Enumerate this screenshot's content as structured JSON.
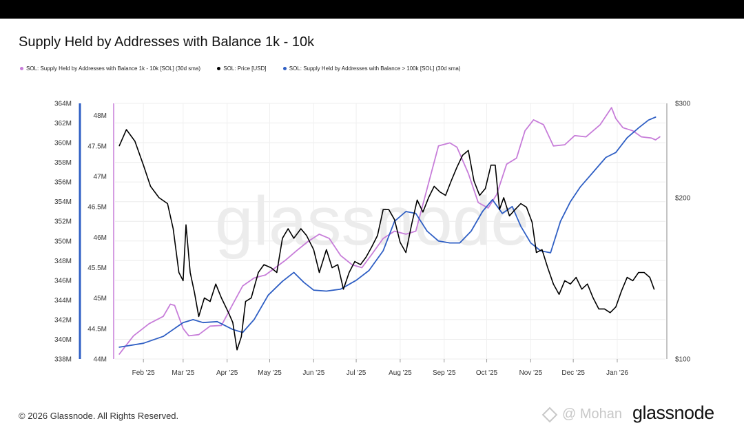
{
  "title": "Supply Held by Addresses with Balance 1k - 10k",
  "legend": [
    {
      "label": "SOL: Supply Held by Addresses with Balance 1k - 10k [SOL] (30d sma)",
      "color": "#c77dd9"
    },
    {
      "label": "SOL: Price [USD]",
      "color": "#000000"
    },
    {
      "label": "SOL: Supply Held by Addresses with Balance > 100k [SOL] (30d sma)",
      "color": "#2f5fc4"
    }
  ],
  "footer": {
    "copyright": "© 2026 Glassnode. All Rights Reserved.",
    "logo": "glassnode",
    "author": "@ Mohan",
    "author_icon": "diamond-icon"
  },
  "watermark": "glassnode",
  "chart_data": {
    "type": "line",
    "x_labels": [
      "Feb '25",
      "Mar '25",
      "Apr '25",
      "May '25",
      "Jun '25",
      "Jul '25",
      "Aug '25",
      "Sep '25",
      "Oct '25",
      "Nov '25",
      "Dec '25",
      "Jan '26"
    ],
    "axes": {
      "left_outer": {
        "ticks": [
          "364M",
          "362M",
          "360M",
          "358M",
          "356M",
          "354M",
          "352M",
          "350M",
          "348M",
          "346M",
          "344M",
          "342M",
          "340M",
          "338M"
        ],
        "range": [
          338,
          364
        ],
        "unit": "M",
        "color": "#2f5fc4"
      },
      "left_inner": {
        "ticks": [
          "48M",
          "47.5M",
          "47M",
          "46.5M",
          "46M",
          "45.5M",
          "45M",
          "44.5M",
          "44M"
        ],
        "range": [
          44,
          48.2
        ],
        "unit": "M",
        "color": "#c77dd9"
      },
      "right": {
        "ticks": [
          "$300",
          "$200",
          "$100"
        ],
        "range": [
          100,
          300
        ],
        "scale": "log"
      }
    },
    "series": [
      {
        "name": "SOL: Supply Held by Addresses with Balance 1k - 10k [SOL] (30d sma)",
        "color": "#c77dd9",
        "axis": "left_inner",
        "unit": "M",
        "points": [
          [
            "2025-01-15",
            44.08
          ],
          [
            "2025-01-25",
            44.38
          ],
          [
            "2025-02-05",
            44.58
          ],
          [
            "2025-02-15",
            44.7
          ],
          [
            "2025-02-20",
            44.9
          ],
          [
            "2025-02-23",
            44.88
          ],
          [
            "2025-03-01",
            44.5
          ],
          [
            "2025-03-05",
            44.38
          ],
          [
            "2025-03-12",
            44.4
          ],
          [
            "2025-03-20",
            44.54
          ],
          [
            "2025-03-28",
            44.55
          ],
          [
            "2025-04-05",
            44.9
          ],
          [
            "2025-04-12",
            45.2
          ],
          [
            "2025-04-20",
            45.33
          ],
          [
            "2025-04-28",
            45.38
          ],
          [
            "2025-05-05",
            45.5
          ],
          [
            "2025-05-12",
            45.62
          ],
          [
            "2025-05-20",
            45.78
          ],
          [
            "2025-05-28",
            45.93
          ],
          [
            "2025-06-05",
            46.05
          ],
          [
            "2025-06-12",
            45.98
          ],
          [
            "2025-06-20",
            45.7
          ],
          [
            "2025-06-28",
            45.55
          ],
          [
            "2025-07-05",
            45.5
          ],
          [
            "2025-07-12",
            45.72
          ],
          [
            "2025-07-20",
            45.98
          ],
          [
            "2025-07-28",
            46.1
          ],
          [
            "2025-08-05",
            46.05
          ],
          [
            "2025-08-12",
            46.1
          ],
          [
            "2025-08-20",
            46.8
          ],
          [
            "2025-08-28",
            47.5
          ],
          [
            "2025-09-05",
            47.55
          ],
          [
            "2025-09-10",
            47.48
          ],
          [
            "2025-09-18",
            47.05
          ],
          [
            "2025-09-25",
            46.57
          ],
          [
            "2025-10-02",
            46.48
          ],
          [
            "2025-10-08",
            46.7
          ],
          [
            "2025-10-15",
            47.2
          ],
          [
            "2025-10-22",
            47.3
          ],
          [
            "2025-10-28",
            47.75
          ],
          [
            "2025-11-03",
            47.93
          ],
          [
            "2025-11-10",
            47.85
          ],
          [
            "2025-11-17",
            47.5
          ],
          [
            "2025-11-25",
            47.52
          ],
          [
            "2025-12-02",
            47.67
          ],
          [
            "2025-12-10",
            47.65
          ],
          [
            "2025-12-20",
            47.85
          ],
          [
            "2025-12-28",
            48.13
          ],
          [
            "2025-12-31",
            47.95
          ],
          [
            "2026-01-05",
            47.8
          ],
          [
            "2026-01-12",
            47.75
          ],
          [
            "2026-01-18",
            47.65
          ],
          [
            "2026-01-25",
            47.63
          ],
          [
            "2026-01-28",
            47.6
          ],
          [
            "2026-01-31",
            47.65
          ]
        ]
      },
      {
        "name": "SOL: Price [USD]",
        "color": "#000000",
        "axis": "right",
        "unit": "USD",
        "points": [
          [
            "2025-01-15",
            250
          ],
          [
            "2025-01-20",
            268
          ],
          [
            "2025-01-26",
            255
          ],
          [
            "2025-02-01",
            230
          ],
          [
            "2025-02-06",
            210
          ],
          [
            "2025-02-12",
            200
          ],
          [
            "2025-02-18",
            195
          ],
          [
            "2025-02-22",
            175
          ],
          [
            "2025-02-26",
            145
          ],
          [
            "2025-03-01",
            140
          ],
          [
            "2025-03-03",
            178
          ],
          [
            "2025-03-06",
            145
          ],
          [
            "2025-03-09",
            133
          ],
          [
            "2025-03-12",
            120
          ],
          [
            "2025-03-16",
            130
          ],
          [
            "2025-03-20",
            128
          ],
          [
            "2025-03-24",
            138
          ],
          [
            "2025-03-28",
            130
          ],
          [
            "2025-04-02",
            122
          ],
          [
            "2025-04-05",
            117
          ],
          [
            "2025-04-08",
            104
          ],
          [
            "2025-04-11",
            110
          ],
          [
            "2025-04-14",
            128
          ],
          [
            "2025-04-18",
            130
          ],
          [
            "2025-04-23",
            145
          ],
          [
            "2025-04-27",
            150
          ],
          [
            "2025-05-02",
            148
          ],
          [
            "2025-05-06",
            145
          ],
          [
            "2025-05-10",
            168
          ],
          [
            "2025-05-14",
            175
          ],
          [
            "2025-05-18",
            168
          ],
          [
            "2025-05-23",
            175
          ],
          [
            "2025-05-27",
            170
          ],
          [
            "2025-06-01",
            160
          ],
          [
            "2025-06-05",
            145
          ],
          [
            "2025-06-10",
            160
          ],
          [
            "2025-06-14",
            148
          ],
          [
            "2025-06-18",
            150
          ],
          [
            "2025-06-22",
            135
          ],
          [
            "2025-06-26",
            145
          ],
          [
            "2025-06-30",
            152
          ],
          [
            "2025-07-04",
            150
          ],
          [
            "2025-07-08",
            155
          ],
          [
            "2025-07-12",
            162
          ],
          [
            "2025-07-16",
            170
          ],
          [
            "2025-07-20",
            190
          ],
          [
            "2025-07-24",
            190
          ],
          [
            "2025-07-28",
            182
          ],
          [
            "2025-08-01",
            165
          ],
          [
            "2025-08-05",
            158
          ],
          [
            "2025-08-09",
            178
          ],
          [
            "2025-08-13",
            198
          ],
          [
            "2025-08-17",
            188
          ],
          [
            "2025-08-21",
            200
          ],
          [
            "2025-08-25",
            210
          ],
          [
            "2025-08-29",
            205
          ],
          [
            "2025-09-02",
            202
          ],
          [
            "2025-09-06",
            215
          ],
          [
            "2025-09-10",
            228
          ],
          [
            "2025-09-14",
            240
          ],
          [
            "2025-09-18",
            245
          ],
          [
            "2025-09-22",
            215
          ],
          [
            "2025-09-26",
            202
          ],
          [
            "2025-09-30",
            208
          ],
          [
            "2025-10-04",
            230
          ],
          [
            "2025-10-07",
            230
          ],
          [
            "2025-10-10",
            190
          ],
          [
            "2025-10-13",
            200
          ],
          [
            "2025-10-17",
            185
          ],
          [
            "2025-10-21",
            190
          ],
          [
            "2025-10-25",
            195
          ],
          [
            "2025-10-29",
            192
          ],
          [
            "2025-11-02",
            180
          ],
          [
            "2025-11-05",
            158
          ],
          [
            "2025-11-09",
            160
          ],
          [
            "2025-11-13",
            148
          ],
          [
            "2025-11-17",
            138
          ],
          [
            "2025-11-21",
            132
          ],
          [
            "2025-11-25",
            140
          ],
          [
            "2025-11-29",
            138
          ],
          [
            "2025-12-03",
            142
          ],
          [
            "2025-12-07",
            135
          ],
          [
            "2025-12-11",
            138
          ],
          [
            "2025-12-15",
            130
          ],
          [
            "2025-12-19",
            124
          ],
          [
            "2025-12-23",
            124
          ],
          [
            "2025-12-27",
            122
          ],
          [
            "2025-12-31",
            125
          ],
          [
            "2026-01-04",
            134
          ],
          [
            "2026-01-08",
            142
          ],
          [
            "2026-01-12",
            140
          ],
          [
            "2026-01-16",
            145
          ],
          [
            "2026-01-20",
            145
          ],
          [
            "2026-01-24",
            142
          ],
          [
            "2026-01-27",
            135
          ]
        ]
      },
      {
        "name": "SOL: Supply Held by Addresses with Balance > 100k [SOL] (30d sma)",
        "color": "#2f5fc4",
        "axis": "left_outer",
        "unit": "M",
        "points": [
          [
            "2025-01-15",
            339.2
          ],
          [
            "2025-02-01",
            339.6
          ],
          [
            "2025-02-15",
            340.3
          ],
          [
            "2025-03-01",
            341.7
          ],
          [
            "2025-03-08",
            342
          ],
          [
            "2025-03-15",
            341.7
          ],
          [
            "2025-03-25",
            341.8
          ],
          [
            "2025-04-05",
            341
          ],
          [
            "2025-04-12",
            340.7
          ],
          [
            "2025-04-20",
            342
          ],
          [
            "2025-04-30",
            344.5
          ],
          [
            "2025-05-10",
            345.9
          ],
          [
            "2025-05-18",
            346.8
          ],
          [
            "2025-05-25",
            345.8
          ],
          [
            "2025-06-01",
            345
          ],
          [
            "2025-06-10",
            344.9
          ],
          [
            "2025-06-20",
            345.1
          ],
          [
            "2025-07-01",
            346
          ],
          [
            "2025-07-10",
            347
          ],
          [
            "2025-07-20",
            349
          ],
          [
            "2025-07-28",
            352
          ],
          [
            "2025-08-05",
            353
          ],
          [
            "2025-08-12",
            352.8
          ],
          [
            "2025-08-20",
            351
          ],
          [
            "2025-08-28",
            350
          ],
          [
            "2025-09-05",
            349.8
          ],
          [
            "2025-09-12",
            349.8
          ],
          [
            "2025-09-20",
            351
          ],
          [
            "2025-09-28",
            353
          ],
          [
            "2025-10-05",
            354.2
          ],
          [
            "2025-10-12",
            352.8
          ],
          [
            "2025-10-19",
            353.5
          ],
          [
            "2025-10-25",
            351.5
          ],
          [
            "2025-11-01",
            349.8
          ],
          [
            "2025-11-08",
            349
          ],
          [
            "2025-11-15",
            348.8
          ],
          [
            "2025-11-22",
            352
          ],
          [
            "2025-11-29",
            354
          ],
          [
            "2025-12-06",
            355.5
          ],
          [
            "2025-12-15",
            357
          ],
          [
            "2025-12-24",
            358.5
          ],
          [
            "2025-12-31",
            359
          ],
          [
            "2026-01-08",
            360.5
          ],
          [
            "2026-01-16",
            361.5
          ],
          [
            "2026-01-23",
            362.3
          ],
          [
            "2026-01-28",
            362.6
          ]
        ]
      }
    ],
    "x_range": [
      "2025-01-12",
      "2026-02-04"
    ],
    "grid": true,
    "legend_position": "top-left"
  }
}
